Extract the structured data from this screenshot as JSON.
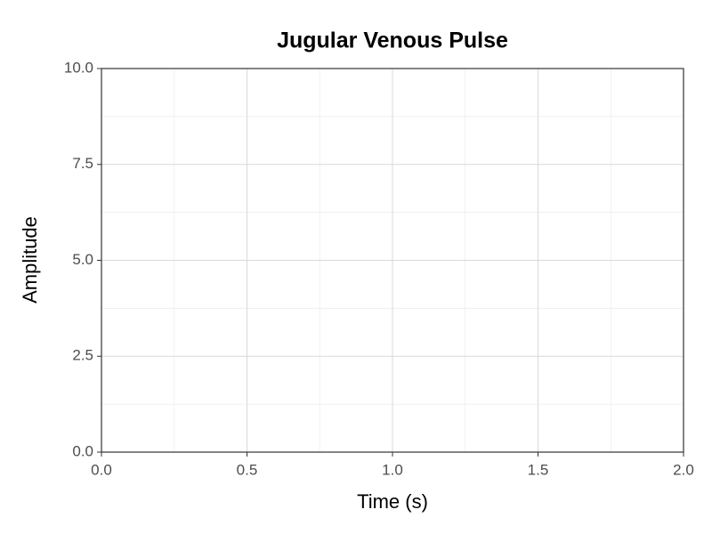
{
  "chart_data": {
    "type": "line",
    "title": "Jugular Venous Pulse",
    "x_label": "Time (s)",
    "y_label": "Amplitude",
    "xlim": [
      0,
      2
    ],
    "ylim": [
      0,
      10
    ],
    "xticks": [
      {
        "value": 0,
        "label": "0.0"
      },
      0.5,
      {
        "value": 1,
        "label": "1.0"
      },
      1.5,
      {
        "value": 2,
        "label": "2.0"
      }
    ],
    "yticks": [
      {
        "value": 0,
        "label": "0.0"
      },
      2.5,
      {
        "value": 5,
        "label": "5.0"
      },
      7.5,
      {
        "value": 10,
        "label": "10.0"
      }
    ],
    "grid": true,
    "minor_grid": true
  }
}
